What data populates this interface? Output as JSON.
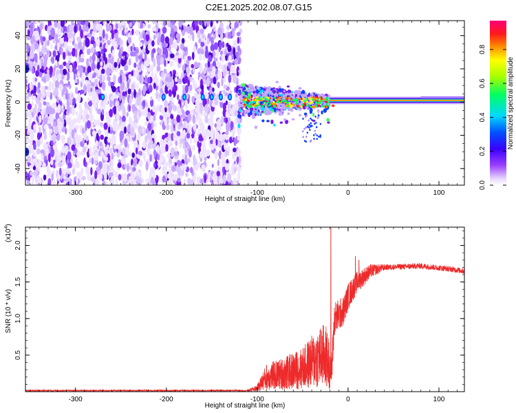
{
  "figure_title": "C2E1.2025.202.08.07.G15",
  "chart_data": [
    {
      "type": "heatmap",
      "title": "C2E1.2025.202.08.07.G15",
      "xlabel": "Height of straight line (km)",
      "ylabel": "Frequency (Hz)",
      "xlim": [
        -355,
        128
      ],
      "ylim": [
        -50,
        49
      ],
      "x_ticks": [
        -300,
        -200,
        -100,
        0,
        100
      ],
      "x_tick_labels": [
        "-300",
        "-200",
        "-100",
        "0",
        "100"
      ],
      "y_ticks": [
        -40,
        -20,
        0,
        20,
        40
      ],
      "y_tick_labels": [
        "-40",
        "-20",
        "0",
        "20",
        "40"
      ],
      "colorbar": {
        "label": "Normalized spectral amplitude",
        "range": [
          0,
          0.97
        ],
        "ticks": [
          0.0,
          0.2,
          0.4,
          0.6,
          0.8
        ],
        "tick_labels": [
          "0.0",
          "0.2",
          "0.4",
          "0.6",
          "0.8"
        ],
        "colormap": "rainbow (white-purple-blue-cyan-green-yellow-orange-red-magenta)"
      },
      "features": {
        "noise_region_x": [
          -355,
          -118
        ],
        "signal_track_start_x": -118,
        "signal_track_freq_hz": 1,
        "colors": {
          "noise": "#7a1cf0",
          "track_peak": "#ff2020"
        }
      },
      "grid": false
    },
    {
      "type": "line",
      "xlabel": "Height of straight line (km)",
      "ylabel": "SNR (10 * v/v)",
      "y_multiplier": "(x10",
      "y_multiplier_exp": "4",
      "y_multiplier_close": ")",
      "xlim": [
        -355,
        128
      ],
      "ylim": [
        0,
        2.25
      ],
      "x_ticks": [
        -300,
        -200,
        -100,
        0,
        100
      ],
      "x_tick_labels": [
        "-300",
        "-200",
        "-100",
        "0",
        "100"
      ],
      "y_ticks": [
        0.5,
        1.0,
        1.5,
        2.0
      ],
      "y_tick_labels": [
        "0.5",
        "1.0",
        "1.5",
        "2.0"
      ],
      "series": [
        {
          "color": "#ee2a2a",
          "envelope": [
            {
              "x": -355,
              "y": 0.015
            },
            {
              "x": -110,
              "y": 0.015
            },
            {
              "x": -100,
              "y": 0.05
            },
            {
              "x": -90,
              "y": 0.2
            },
            {
              "x": -70,
              "y": 0.25
            },
            {
              "x": -50,
              "y": 0.32
            },
            {
              "x": -35,
              "y": 0.45
            },
            {
              "x": -25,
              "y": 0.5
            },
            {
              "x": -18,
              "y": 0.3
            },
            {
              "x": -15,
              "y": 1.0
            },
            {
              "x": -5,
              "y": 1.1
            },
            {
              "x": 0,
              "y": 1.3
            },
            {
              "x": 10,
              "y": 1.5
            },
            {
              "x": 25,
              "y": 1.65
            },
            {
              "x": 40,
              "y": 1.7
            },
            {
              "x": 80,
              "y": 1.72
            },
            {
              "x": 110,
              "y": 1.68
            },
            {
              "x": 128,
              "y": 1.65
            }
          ],
          "peaks": [
            {
              "x": -19,
              "y": 2.25
            },
            {
              "x": 12,
              "y": 1.8
            },
            {
              "x": 8,
              "y": 1.85
            }
          ]
        }
      ],
      "grid": false
    }
  ]
}
